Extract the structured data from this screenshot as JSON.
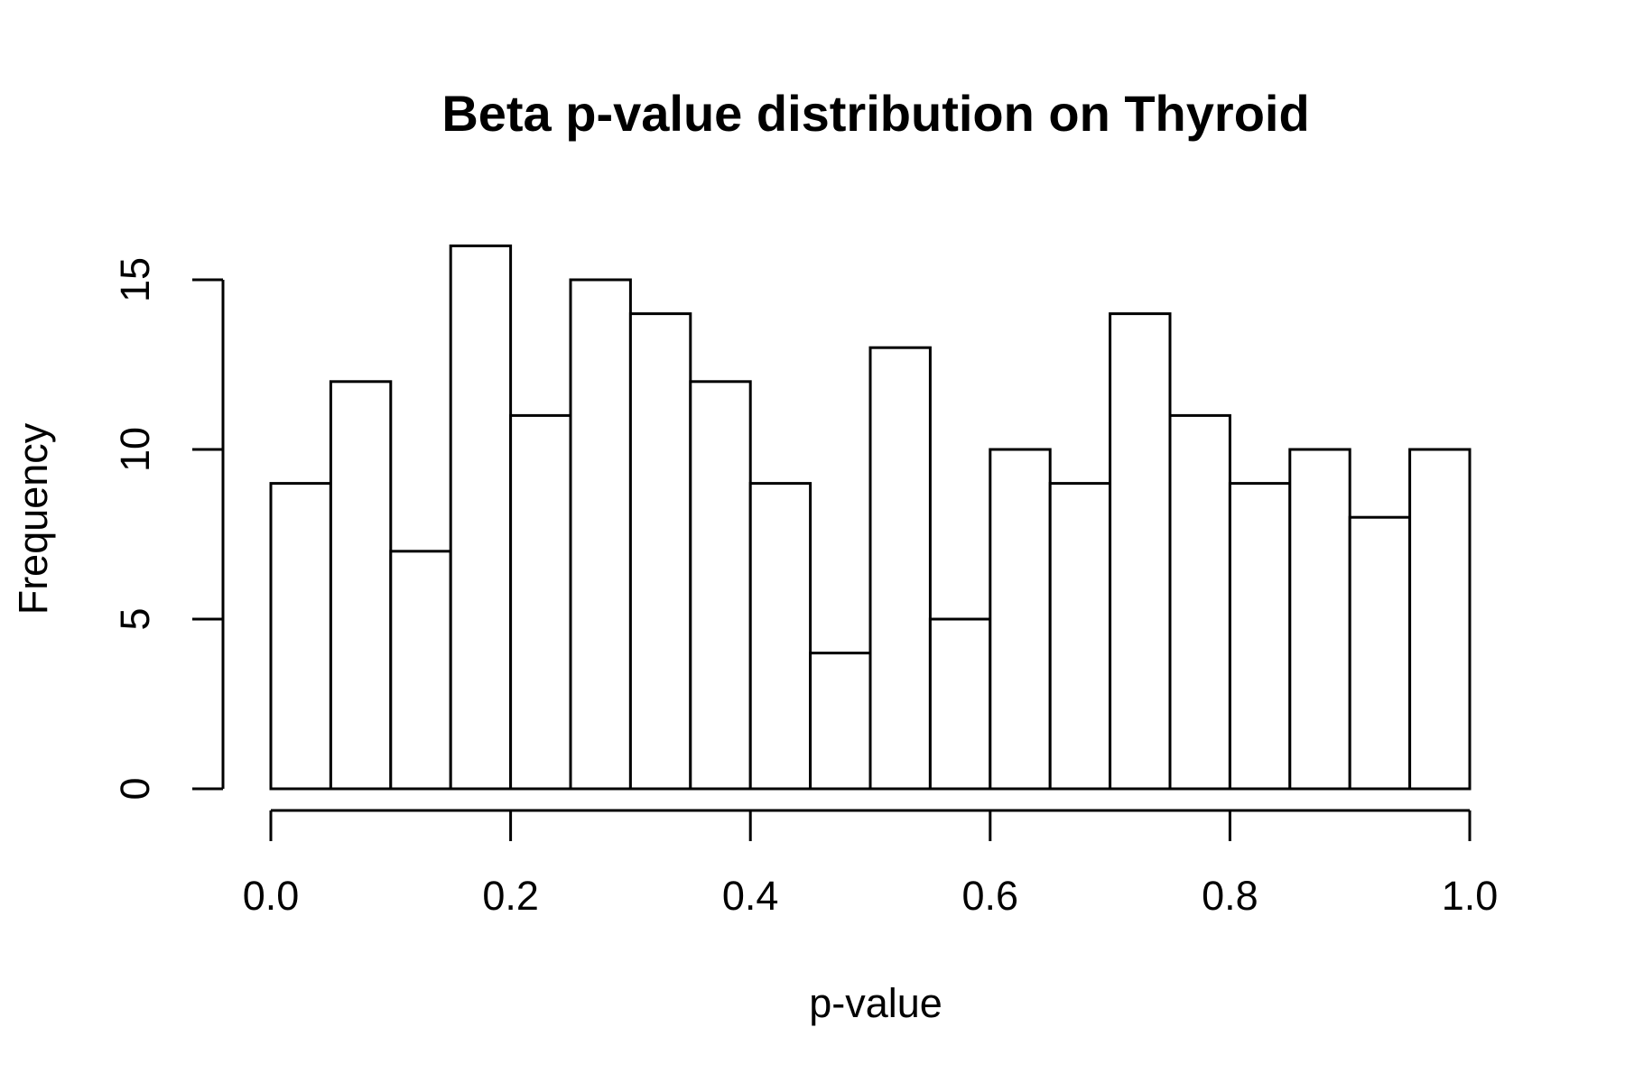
{
  "chart_data": {
    "type": "bar",
    "title": "Beta p-value distribution on Thyroid",
    "xlabel": "p-value",
    "ylabel": "Frequency",
    "bin_edges": [
      0.0,
      0.05,
      0.1,
      0.15,
      0.2,
      0.25,
      0.3,
      0.35,
      0.4,
      0.45,
      0.5,
      0.55,
      0.6,
      0.65,
      0.7,
      0.75,
      0.8,
      0.85,
      0.9,
      0.95,
      1.0
    ],
    "values": [
      9,
      12,
      7,
      16,
      11,
      15,
      14,
      12,
      9,
      4,
      13,
      5,
      10,
      9,
      14,
      11,
      9,
      10,
      8,
      10
    ],
    "xlim": [
      0.0,
      1.0
    ],
    "ylim": [
      0,
      16
    ],
    "x_ticks": [
      0.0,
      0.2,
      0.4,
      0.6,
      0.8,
      1.0
    ],
    "x_tick_labels": [
      "0.0",
      "0.2",
      "0.4",
      "0.6",
      "0.8",
      "1.0"
    ],
    "y_ticks": [
      0,
      5,
      10,
      15
    ],
    "y_tick_labels": [
      "0",
      "5",
      "10",
      "15"
    ],
    "grid": false,
    "bar_fill": "#ffffff",
    "bar_stroke": "#000000"
  }
}
